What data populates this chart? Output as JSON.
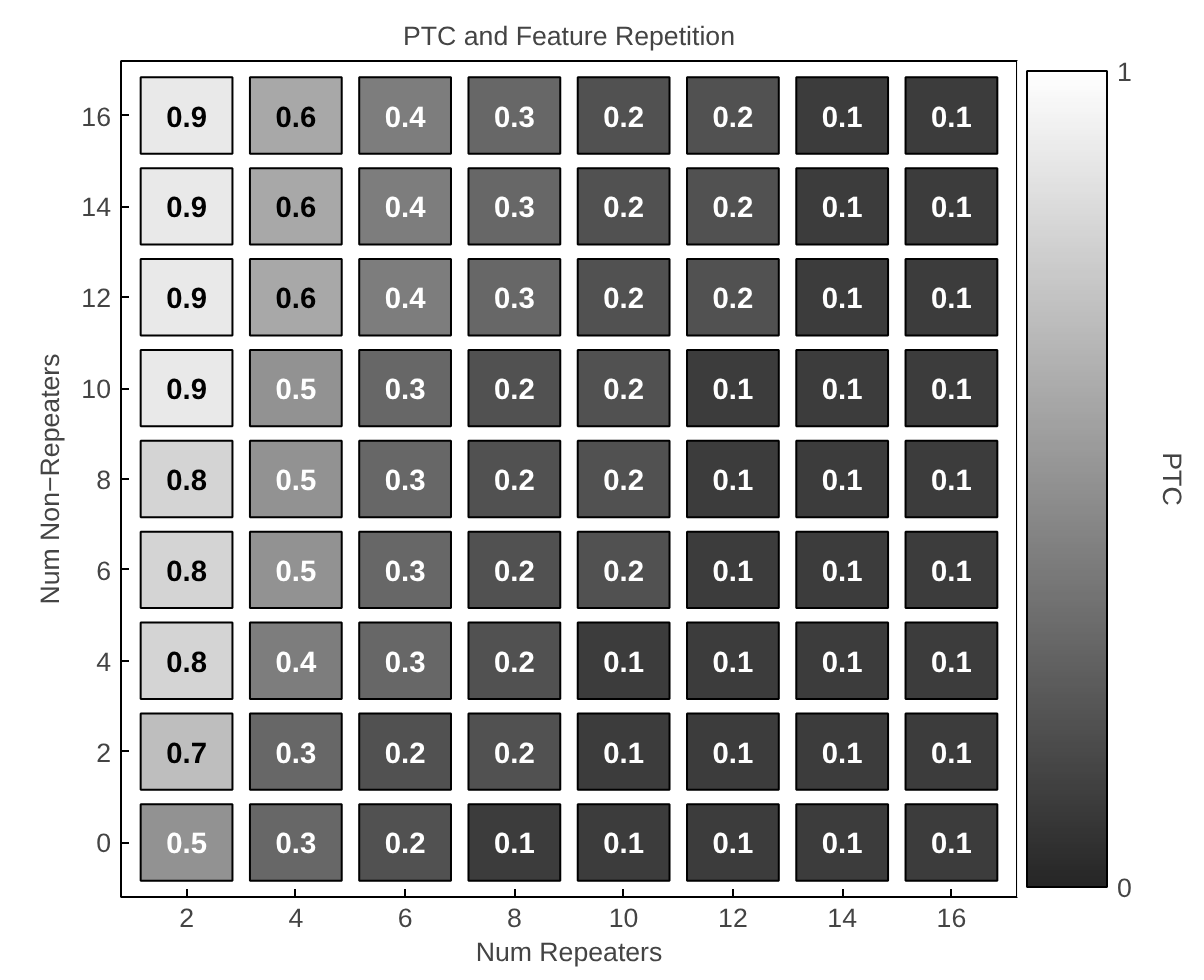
{
  "chart_data": {
    "type": "heatmap",
    "title": "PTC and Feature Repetition",
    "xlabel": "Num Repeaters",
    "ylabel": "Num Non−Repeaters",
    "clabel": "PTC",
    "categories": [
      "2",
      "4",
      "6",
      "8",
      "10",
      "12",
      "14",
      "16"
    ],
    "y_categories": [
      "16",
      "14",
      "12",
      "10",
      "8",
      "6",
      "4",
      "2",
      "0"
    ],
    "cells": [
      [
        0.9,
        0.6,
        0.4,
        0.3,
        0.2,
        0.2,
        0.1,
        0.1
      ],
      [
        0.9,
        0.6,
        0.4,
        0.3,
        0.2,
        0.2,
        0.1,
        0.1
      ],
      [
        0.9,
        0.6,
        0.4,
        0.3,
        0.2,
        0.2,
        0.1,
        0.1
      ],
      [
        0.9,
        0.5,
        0.3,
        0.2,
        0.2,
        0.1,
        0.1,
        0.1
      ],
      [
        0.8,
        0.5,
        0.3,
        0.2,
        0.2,
        0.1,
        0.1,
        0.1
      ],
      [
        0.8,
        0.5,
        0.3,
        0.2,
        0.2,
        0.1,
        0.1,
        0.1
      ],
      [
        0.8,
        0.4,
        0.3,
        0.2,
        0.1,
        0.1,
        0.1,
        0.1
      ],
      [
        0.7,
        0.3,
        0.2,
        0.2,
        0.1,
        0.1,
        0.1,
        0.1
      ],
      [
        0.5,
        0.3,
        0.2,
        0.1,
        0.1,
        0.1,
        0.1,
        0.1
      ]
    ],
    "clim": [
      0,
      1
    ],
    "cticks": [
      0,
      1
    ],
    "data_labels": true
  }
}
